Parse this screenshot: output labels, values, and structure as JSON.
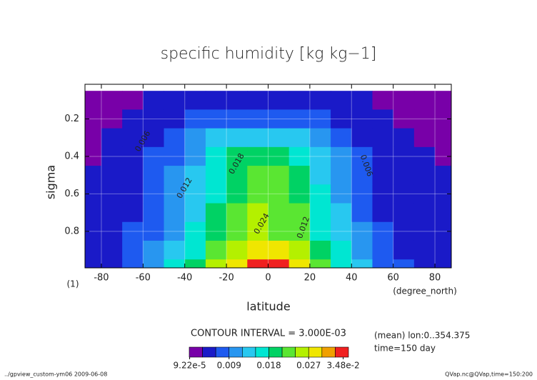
{
  "chart_data": {
    "type": "contour",
    "title": "specific humidity [kg kg−1]",
    "x_label": "latitude",
    "x_units": "(degree_north)",
    "y_label": "sigma",
    "y_units": "(1)",
    "contour_interval": "CONTOUR INTERVAL = 3.000E-03",
    "notes": [
      "(mean) lon:0..354.375",
      "time=150 day"
    ],
    "footer_left": "../gpview_custom-ym06  2009-06-08",
    "footer_right": "QVap.nc@QVap,time=150:200",
    "x": [
      -85,
      -75,
      -65,
      -55,
      -45,
      -35,
      -25,
      -15,
      -5,
      5,
      15,
      25,
      35,
      45,
      55,
      65,
      75,
      85
    ],
    "y": [
      0.1,
      0.2,
      0.3,
      0.4,
      0.5,
      0.6,
      0.7,
      0.8,
      0.9,
      1.0
    ],
    "z": [
      [
        0.001,
        0.001,
        0.002,
        0.003,
        0.003,
        0.003,
        0.003,
        0.004,
        0.004,
        0.004,
        0.004,
        0.003,
        0.003,
        0.003,
        0.002,
        0.001,
        0.001,
        0.001
      ],
      [
        0.001,
        0.002,
        0.003,
        0.004,
        0.005,
        0.006,
        0.007,
        0.007,
        0.008,
        0.008,
        0.007,
        0.006,
        0.005,
        0.004,
        0.003,
        0.002,
        0.001,
        0.001
      ],
      [
        0.002,
        0.003,
        0.004,
        0.005,
        0.007,
        0.009,
        0.012,
        0.013,
        0.014,
        0.014,
        0.012,
        0.01,
        0.007,
        0.005,
        0.004,
        0.003,
        0.002,
        0.002
      ],
      [
        0.002,
        0.003,
        0.004,
        0.006,
        0.008,
        0.011,
        0.015,
        0.018,
        0.019,
        0.019,
        0.017,
        0.013,
        0.009,
        0.006,
        0.004,
        0.003,
        0.003,
        0.002
      ],
      [
        0.003,
        0.004,
        0.005,
        0.006,
        0.009,
        0.012,
        0.016,
        0.019,
        0.021,
        0.021,
        0.019,
        0.014,
        0.01,
        0.007,
        0.005,
        0.004,
        0.003,
        0.003
      ],
      [
        0.003,
        0.004,
        0.005,
        0.007,
        0.01,
        0.013,
        0.017,
        0.02,
        0.022,
        0.022,
        0.02,
        0.015,
        0.011,
        0.007,
        0.005,
        0.004,
        0.004,
        0.003
      ],
      [
        0.003,
        0.004,
        0.005,
        0.007,
        0.01,
        0.014,
        0.018,
        0.021,
        0.024,
        0.023,
        0.021,
        0.016,
        0.012,
        0.008,
        0.005,
        0.004,
        0.004,
        0.004
      ],
      [
        0.004,
        0.004,
        0.006,
        0.008,
        0.011,
        0.015,
        0.019,
        0.022,
        0.025,
        0.023,
        0.021,
        0.017,
        0.013,
        0.009,
        0.006,
        0.005,
        0.004,
        0.004
      ],
      [
        0.004,
        0.005,
        0.006,
        0.009,
        0.013,
        0.017,
        0.022,
        0.025,
        0.028,
        0.027,
        0.024,
        0.02,
        0.015,
        0.01,
        0.007,
        0.005,
        0.004,
        0.004
      ],
      [
        0.004,
        0.005,
        0.007,
        0.01,
        0.015,
        0.02,
        0.025,
        0.029,
        0.033,
        0.034,
        0.028,
        0.023,
        0.017,
        0.012,
        0.008,
        0.006,
        0.004,
        0.004
      ]
    ],
    "xlim": [
      -87.86,
      87.86
    ],
    "ylim": [
      0.015,
      0.995
    ],
    "y_reversed": true,
    "xticks": [
      -80,
      -60,
      -40,
      -20,
      0,
      20,
      40,
      60,
      80
    ],
    "yticks": [
      0.2,
      0.4,
      0.6,
      0.8
    ],
    "grid": true,
    "levels": [
      0,
      0.003,
      0.006,
      0.009,
      0.012,
      0.015,
      0.018,
      0.021,
      0.024,
      0.027,
      0.03,
      0.033,
      0.036
    ],
    "colors": [
      "#7800a8",
      "#1a1ac8",
      "#1e5af0",
      "#2896f0",
      "#28c8f0",
      "#00e6d2",
      "#00d264",
      "#5ae632",
      "#b4f000",
      "#f0e600",
      "#f0a000",
      "#f02020"
    ],
    "colorbar_ticks": [
      {
        "value": 9.22e-05,
        "label": "9.22e-5"
      },
      0.009,
      0.018,
      0.027,
      {
        "value": 0.0348,
        "label": "3.48e-2"
      }
    ],
    "contour_labels": [
      0.006,
      0.012,
      0.018,
      0.024,
      0.012,
      0.006
    ]
  }
}
